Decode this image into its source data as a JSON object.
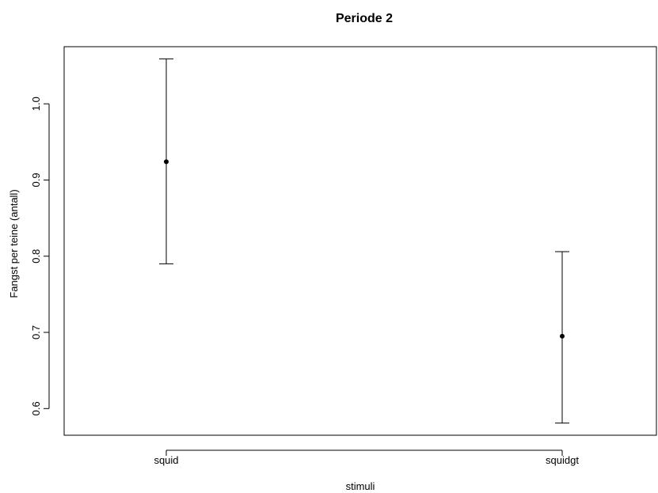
{
  "chart_data": {
    "type": "scatter",
    "title": "Periode 2",
    "xlabel": "stimuli",
    "ylabel": "Fangst per teine (antall)",
    "categories": [
      "squid",
      "squidgt"
    ],
    "series": [
      {
        "points": [
          {
            "category": "squid",
            "mean": 0.924,
            "lower": 0.79,
            "upper": 1.059
          },
          {
            "category": "squidgt",
            "mean": 0.695,
            "lower": 0.581,
            "upper": 0.806
          }
        ]
      }
    ],
    "yticks": [
      0.6,
      0.7,
      0.8,
      0.9,
      1.0
    ],
    "ytick_labels": [
      "0.6",
      "0.7",
      "0.8",
      "0.9",
      "1.0"
    ],
    "ylim": [
      0.565,
      1.075
    ],
    "grid": false,
    "legend": "none",
    "colors": {
      "marks": "#000000",
      "background": "#ffffff"
    }
  }
}
